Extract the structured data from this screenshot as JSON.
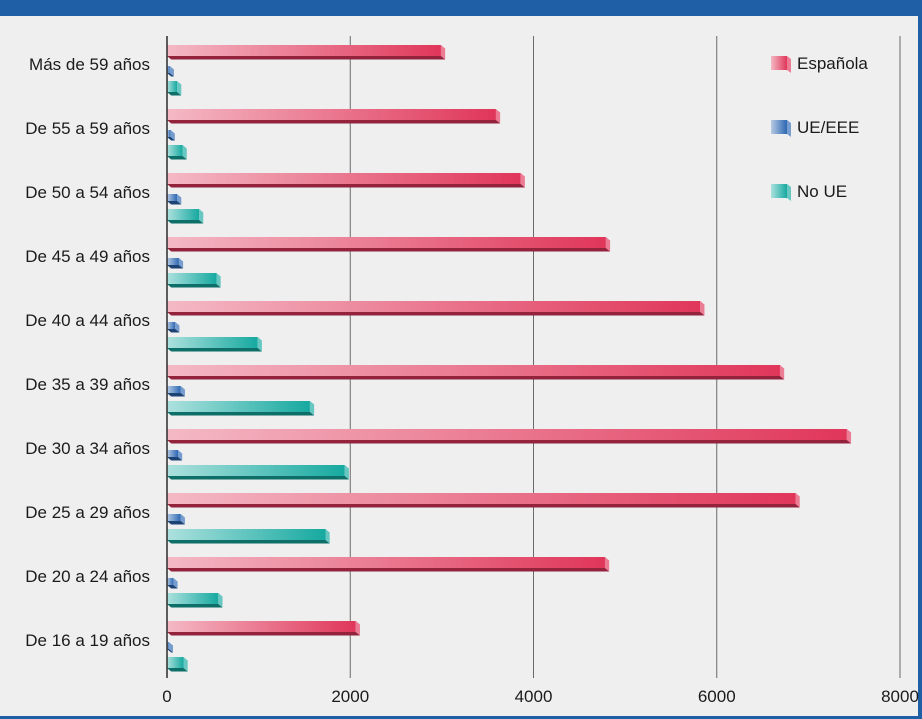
{
  "chart_data": {
    "type": "bar",
    "orientation": "horizontal",
    "categories": [
      "Más de 59 años",
      "De 55 a 59 años",
      "De 50 a 54 años",
      "De 45 a 49 años",
      "De 40 a 44 años",
      "De 35 a 39 años",
      "De 30 a 34 años",
      "De 25 a 29 años",
      "De 20 a 24 años",
      "De 16 a 19 años"
    ],
    "series": [
      {
        "name": "Española",
        "color": "#e0365a",
        "values": [
          2990,
          3590,
          3860,
          4790,
          5820,
          6690,
          7420,
          6860,
          4780,
          2060
        ]
      },
      {
        "name": "UE/EEE",
        "color": "#2d67b3",
        "values": [
          30,
          40,
          110,
          130,
          90,
          150,
          120,
          150,
          70,
          20
        ]
      },
      {
        "name": "No UE",
        "color": "#16a9a0",
        "values": [
          110,
          170,
          350,
          540,
          990,
          1560,
          1940,
          1730,
          560,
          180
        ]
      }
    ],
    "xlim": [
      0,
      8000
    ],
    "xticks": [
      "0",
      "2000",
      "4000",
      "6000",
      "8000"
    ],
    "grid": "vertical",
    "legend": "top-right"
  }
}
